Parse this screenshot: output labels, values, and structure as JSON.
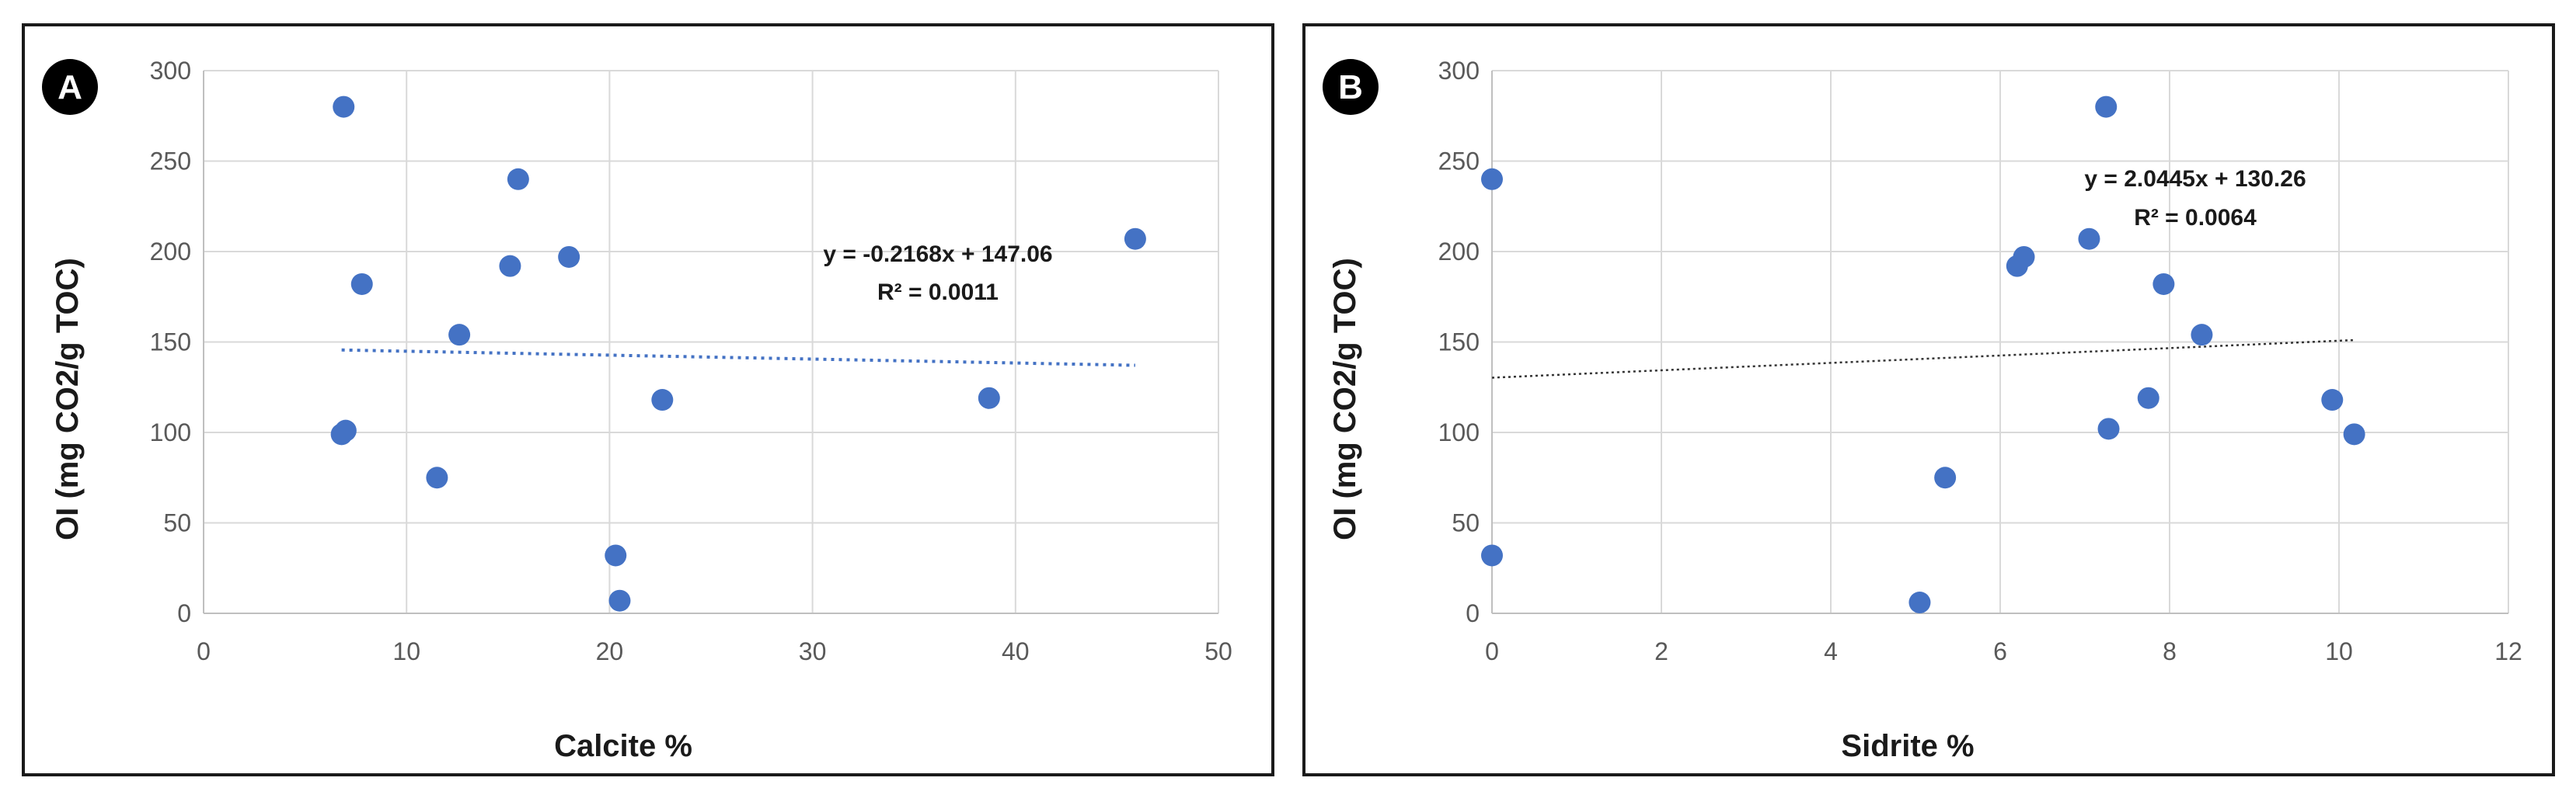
{
  "chart_data": [
    {
      "type": "scatter",
      "panel_label": "A",
      "xlabel": "Calcite %",
      "ylabel": "OI (mg CO2/g TOC)",
      "xlim": [
        0,
        50
      ],
      "ylim": [
        0,
        300
      ],
      "xticks": [
        0,
        10,
        20,
        30,
        40,
        50
      ],
      "yticks": [
        0,
        50,
        100,
        150,
        200,
        250,
        300
      ],
      "grid": true,
      "marker_color": "#4472C4",
      "points": [
        {
          "x": 6.9,
          "y": 280
        },
        {
          "x": 15.5,
          "y": 240
        },
        {
          "x": 45.9,
          "y": 207
        },
        {
          "x": 18.0,
          "y": 197
        },
        {
          "x": 15.1,
          "y": 192
        },
        {
          "x": 7.8,
          "y": 182
        },
        {
          "x": 12.6,
          "y": 154
        },
        {
          "x": 38.7,
          "y": 119
        },
        {
          "x": 22.6,
          "y": 118
        },
        {
          "x": 7.0,
          "y": 101
        },
        {
          "x": 6.8,
          "y": 99
        },
        {
          "x": 11.5,
          "y": 75
        },
        {
          "x": 20.3,
          "y": 32
        },
        {
          "x": 20.5,
          "y": 7
        }
      ],
      "trendline": {
        "slope": -0.2168,
        "intercept": 147.06,
        "x_range": [
          6.8,
          45.9
        ],
        "style": "dotted",
        "color": "#4472C4",
        "equation": "y = -0.2168x + 147.06",
        "r2": "R² = 0.0011"
      }
    },
    {
      "type": "scatter",
      "panel_label": "B",
      "xlabel": "Sidrite %",
      "ylabel": "OI (mg CO2/g TOC)",
      "xlim": [
        0,
        12
      ],
      "ylim": [
        0,
        300
      ],
      "xticks": [
        0,
        2,
        4,
        6,
        8,
        10,
        12
      ],
      "yticks": [
        0,
        50,
        100,
        150,
        200,
        250,
        300
      ],
      "grid": true,
      "marker_color": "#4472C4",
      "points": [
        {
          "x": 7.25,
          "y": 280
        },
        {
          "x": 0.0,
          "y": 240
        },
        {
          "x": 7.05,
          "y": 207
        },
        {
          "x": 6.28,
          "y": 197
        },
        {
          "x": 6.2,
          "y": 192
        },
        {
          "x": 7.93,
          "y": 182
        },
        {
          "x": 8.38,
          "y": 154
        },
        {
          "x": 7.75,
          "y": 119
        },
        {
          "x": 9.92,
          "y": 118
        },
        {
          "x": 7.28,
          "y": 102
        },
        {
          "x": 10.18,
          "y": 99
        },
        {
          "x": 5.35,
          "y": 75
        },
        {
          "x": 0.0,
          "y": 32
        },
        {
          "x": 5.05,
          "y": 6
        }
      ],
      "trendline": {
        "slope": 2.0445,
        "intercept": 130.26,
        "x_range": [
          0,
          10.18
        ],
        "style": "dotted",
        "color": "#333333",
        "equation": "y = 2.0445x + 130.26",
        "r2": "R² = 0.0064"
      }
    }
  ]
}
